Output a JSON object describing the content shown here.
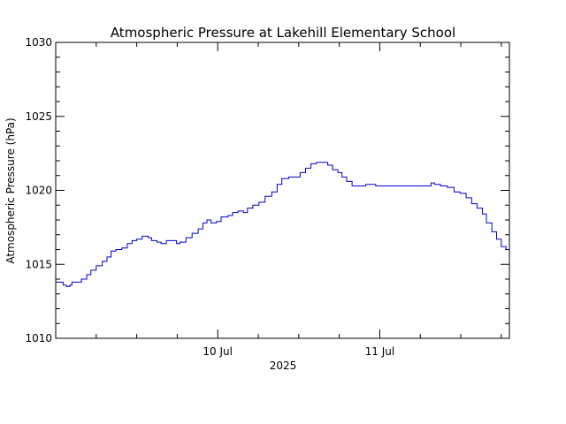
{
  "chart_data": {
    "type": "line",
    "title": "Atmospheric Pressure at Lakehill Elementary School",
    "xlabel": "2025",
    "ylabel": "Atmospheric Pressure (hPa)",
    "x_units": "hours since 2025-07-09 00:00",
    "xlim": [
      0,
      67.2
    ],
    "ylim": [
      1010,
      1030
    ],
    "y_major_ticks": [
      1010,
      1015,
      1020,
      1025,
      1030
    ],
    "y_tick_labels": [
      "1010",
      "1015",
      "1020",
      "1025",
      "1030"
    ],
    "y_minor_step": 1,
    "x_major_ticks": [
      24,
      48
    ],
    "x_tick_labels": [
      "10 Jul",
      "11 Jul"
    ],
    "x_minor_step": 6,
    "grid": false,
    "line_color": "#0000cc",
    "axis_color": "#000000",
    "series": [
      {
        "points": [
          [
            0.0,
            1013.8
          ],
          [
            0.8,
            1013.8
          ],
          [
            1.1,
            1013.6
          ],
          [
            1.6,
            1013.5
          ],
          [
            2.1,
            1013.6
          ],
          [
            2.4,
            1013.8
          ],
          [
            3.0,
            1013.8
          ],
          [
            3.8,
            1014.0
          ],
          [
            4.6,
            1014.3
          ],
          [
            5.2,
            1014.6
          ],
          [
            6.0,
            1014.9
          ],
          [
            6.9,
            1015.2
          ],
          [
            7.6,
            1015.5
          ],
          [
            8.2,
            1015.9
          ],
          [
            8.9,
            1016.0
          ],
          [
            9.8,
            1016.1
          ],
          [
            10.6,
            1016.4
          ],
          [
            11.3,
            1016.6
          ],
          [
            12.0,
            1016.7
          ],
          [
            12.8,
            1016.9
          ],
          [
            13.7,
            1016.8
          ],
          [
            14.2,
            1016.6
          ],
          [
            15.0,
            1016.5
          ],
          [
            15.6,
            1016.4
          ],
          [
            16.4,
            1016.6
          ],
          [
            17.3,
            1016.6
          ],
          [
            17.9,
            1016.4
          ],
          [
            18.4,
            1016.5
          ],
          [
            19.3,
            1016.8
          ],
          [
            20.2,
            1017.1
          ],
          [
            21.1,
            1017.4
          ],
          [
            21.8,
            1017.8
          ],
          [
            22.4,
            1018.0
          ],
          [
            23.0,
            1017.8
          ],
          [
            23.8,
            1017.9
          ],
          [
            24.5,
            1018.2
          ],
          [
            25.5,
            1018.3
          ],
          [
            26.2,
            1018.5
          ],
          [
            27.0,
            1018.6
          ],
          [
            27.8,
            1018.5
          ],
          [
            28.4,
            1018.8
          ],
          [
            29.2,
            1019.0
          ],
          [
            30.1,
            1019.2
          ],
          [
            31.0,
            1019.6
          ],
          [
            32.0,
            1019.9
          ],
          [
            32.8,
            1020.4
          ],
          [
            33.5,
            1020.8
          ],
          [
            34.5,
            1020.9
          ],
          [
            35.6,
            1020.9
          ],
          [
            36.2,
            1021.2
          ],
          [
            37.0,
            1021.5
          ],
          [
            37.8,
            1021.8
          ],
          [
            38.6,
            1021.9
          ],
          [
            39.6,
            1021.9
          ],
          [
            40.3,
            1021.7
          ],
          [
            41.0,
            1021.4
          ],
          [
            41.8,
            1021.2
          ],
          [
            42.4,
            1020.9
          ],
          [
            43.1,
            1020.6
          ],
          [
            43.9,
            1020.3
          ],
          [
            45.0,
            1020.3
          ],
          [
            45.9,
            1020.4
          ],
          [
            46.7,
            1020.4
          ],
          [
            47.4,
            1020.3
          ],
          [
            49.0,
            1020.3
          ],
          [
            51.0,
            1020.3
          ],
          [
            53.0,
            1020.3
          ],
          [
            55.0,
            1020.3
          ],
          [
            55.6,
            1020.5
          ],
          [
            56.1,
            1020.4
          ],
          [
            57.0,
            1020.3
          ],
          [
            58.0,
            1020.2
          ],
          [
            59.0,
            1019.9
          ],
          [
            59.9,
            1019.8
          ],
          [
            60.8,
            1019.5
          ],
          [
            61.6,
            1019.1
          ],
          [
            62.4,
            1018.8
          ],
          [
            63.2,
            1018.4
          ],
          [
            63.8,
            1017.8
          ],
          [
            64.6,
            1017.2
          ],
          [
            65.3,
            1016.7
          ],
          [
            66.0,
            1016.2
          ],
          [
            66.7,
            1016.0
          ],
          [
            67.2,
            1015.9
          ]
        ]
      }
    ]
  }
}
